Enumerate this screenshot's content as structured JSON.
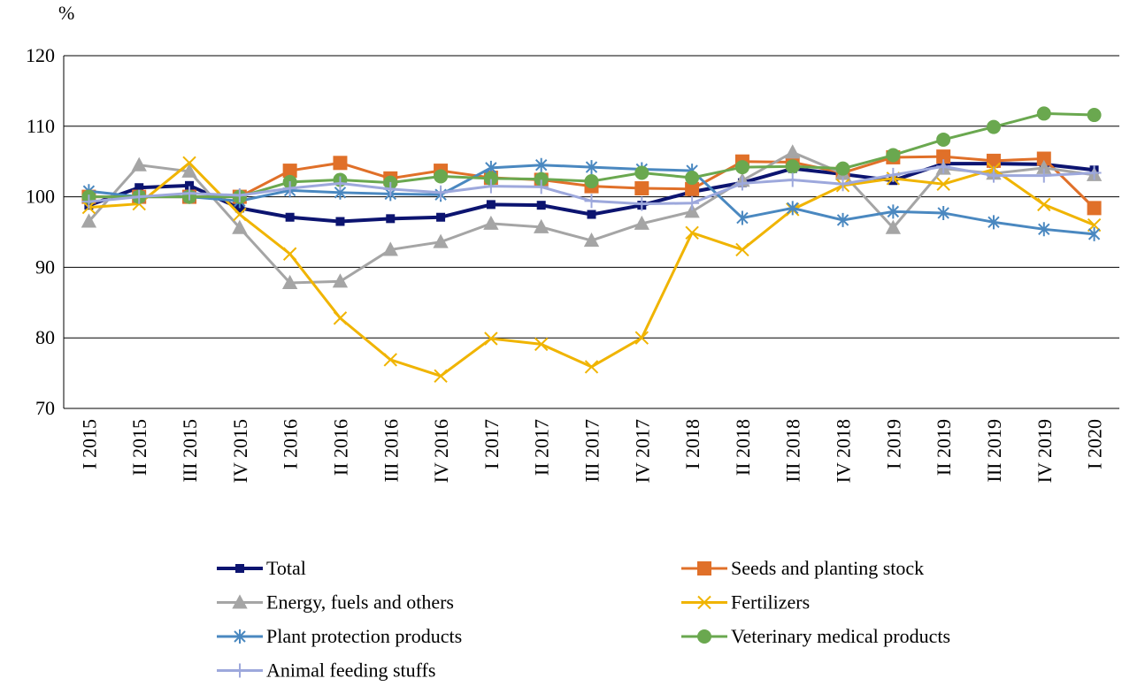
{
  "chart_data": {
    "type": "line",
    "y_label": "%",
    "categories": [
      "I 2015",
      "II 2015",
      "III 2015",
      "IV 2015",
      "I 2016",
      "II 2016",
      "III 2016",
      "IV 2016",
      "I 2017",
      "II 2017",
      "III 2017",
      "IV 2017",
      "I 2018",
      "II 2018",
      "III 2018",
      "IV 2018",
      "I 2019",
      "II 2019",
      "III 2019",
      "IV 2019",
      "I 2020"
    ],
    "ylim": [
      70,
      120
    ],
    "yticks": [
      70,
      80,
      90,
      100,
      110,
      120
    ],
    "grid": true,
    "legend": "bottom",
    "series": [
      {
        "name": "Total",
        "color": "#0c1470",
        "marker": "square",
        "values": [
          98.8,
          101.3,
          101.6,
          98.4,
          97.1,
          96.5,
          96.9,
          97.1,
          98.9,
          98.8,
          97.5,
          98.8,
          100.7,
          102.0,
          104.0,
          103.2,
          102.3,
          104.7,
          104.7,
          104.6,
          103.8
        ]
      },
      {
        "name": "Seeds and planting stock",
        "color": "#e07029",
        "marker": "bigsquare",
        "values": [
          100.0,
          100.0,
          100.0,
          100.0,
          103.7,
          104.8,
          102.6,
          103.7,
          102.7,
          102.4,
          101.5,
          101.2,
          101.1,
          105.0,
          104.9,
          103.4,
          105.6,
          105.7,
          105.1,
          105.4,
          98.4
        ]
      },
      {
        "name": "Energy, fuels and others",
        "color": "#a5a5a5",
        "marker": "triangle",
        "values": [
          96.5,
          104.5,
          103.6,
          95.6,
          87.8,
          88.0,
          92.5,
          93.6,
          96.2,
          95.7,
          93.8,
          96.2,
          97.9,
          102.3,
          106.3,
          103.3,
          95.6,
          104.0,
          103.3,
          104.1,
          103.1
        ]
      },
      {
        "name": "Fertilizers",
        "color": "#f0b400",
        "marker": "x",
        "values": [
          98.5,
          99.0,
          104.8,
          97.5,
          91.9,
          82.8,
          76.9,
          74.6,
          79.9,
          79.1,
          75.9,
          80.0,
          94.9,
          92.5,
          98.2,
          101.6,
          102.6,
          101.8,
          103.9,
          98.9,
          96.0
        ]
      },
      {
        "name": "Plant protection products",
        "color": "#4a88c0",
        "marker": "star",
        "values": [
          100.8,
          100.0,
          100.0,
          99.4,
          100.9,
          100.6,
          100.4,
          100.3,
          104.1,
          104.5,
          104.2,
          103.9,
          103.7,
          97.0,
          98.4,
          96.7,
          97.9,
          97.7,
          96.4,
          95.4,
          94.7
        ]
      },
      {
        "name": "Veterinary medical products",
        "color": "#6aa84f",
        "marker": "circle",
        "values": [
          100.0,
          100.0,
          100.0,
          100.0,
          102.1,
          102.4,
          102.0,
          102.9,
          102.6,
          102.5,
          102.2,
          103.4,
          102.7,
          104.2,
          104.3,
          104.0,
          105.9,
          108.1,
          109.9,
          111.8,
          111.6
        ]
      },
      {
        "name": "Animal feeding stuffs",
        "color": "#9da8dc",
        "marker": "plus",
        "values": [
          99.3,
          100.0,
          100.5,
          100.2,
          101.2,
          101.9,
          101.1,
          100.6,
          101.5,
          101.4,
          99.4,
          99.0,
          99.1,
          101.9,
          102.4,
          101.8,
          103.1,
          104.3,
          103.0,
          103.0,
          103.4
        ]
      }
    ]
  }
}
